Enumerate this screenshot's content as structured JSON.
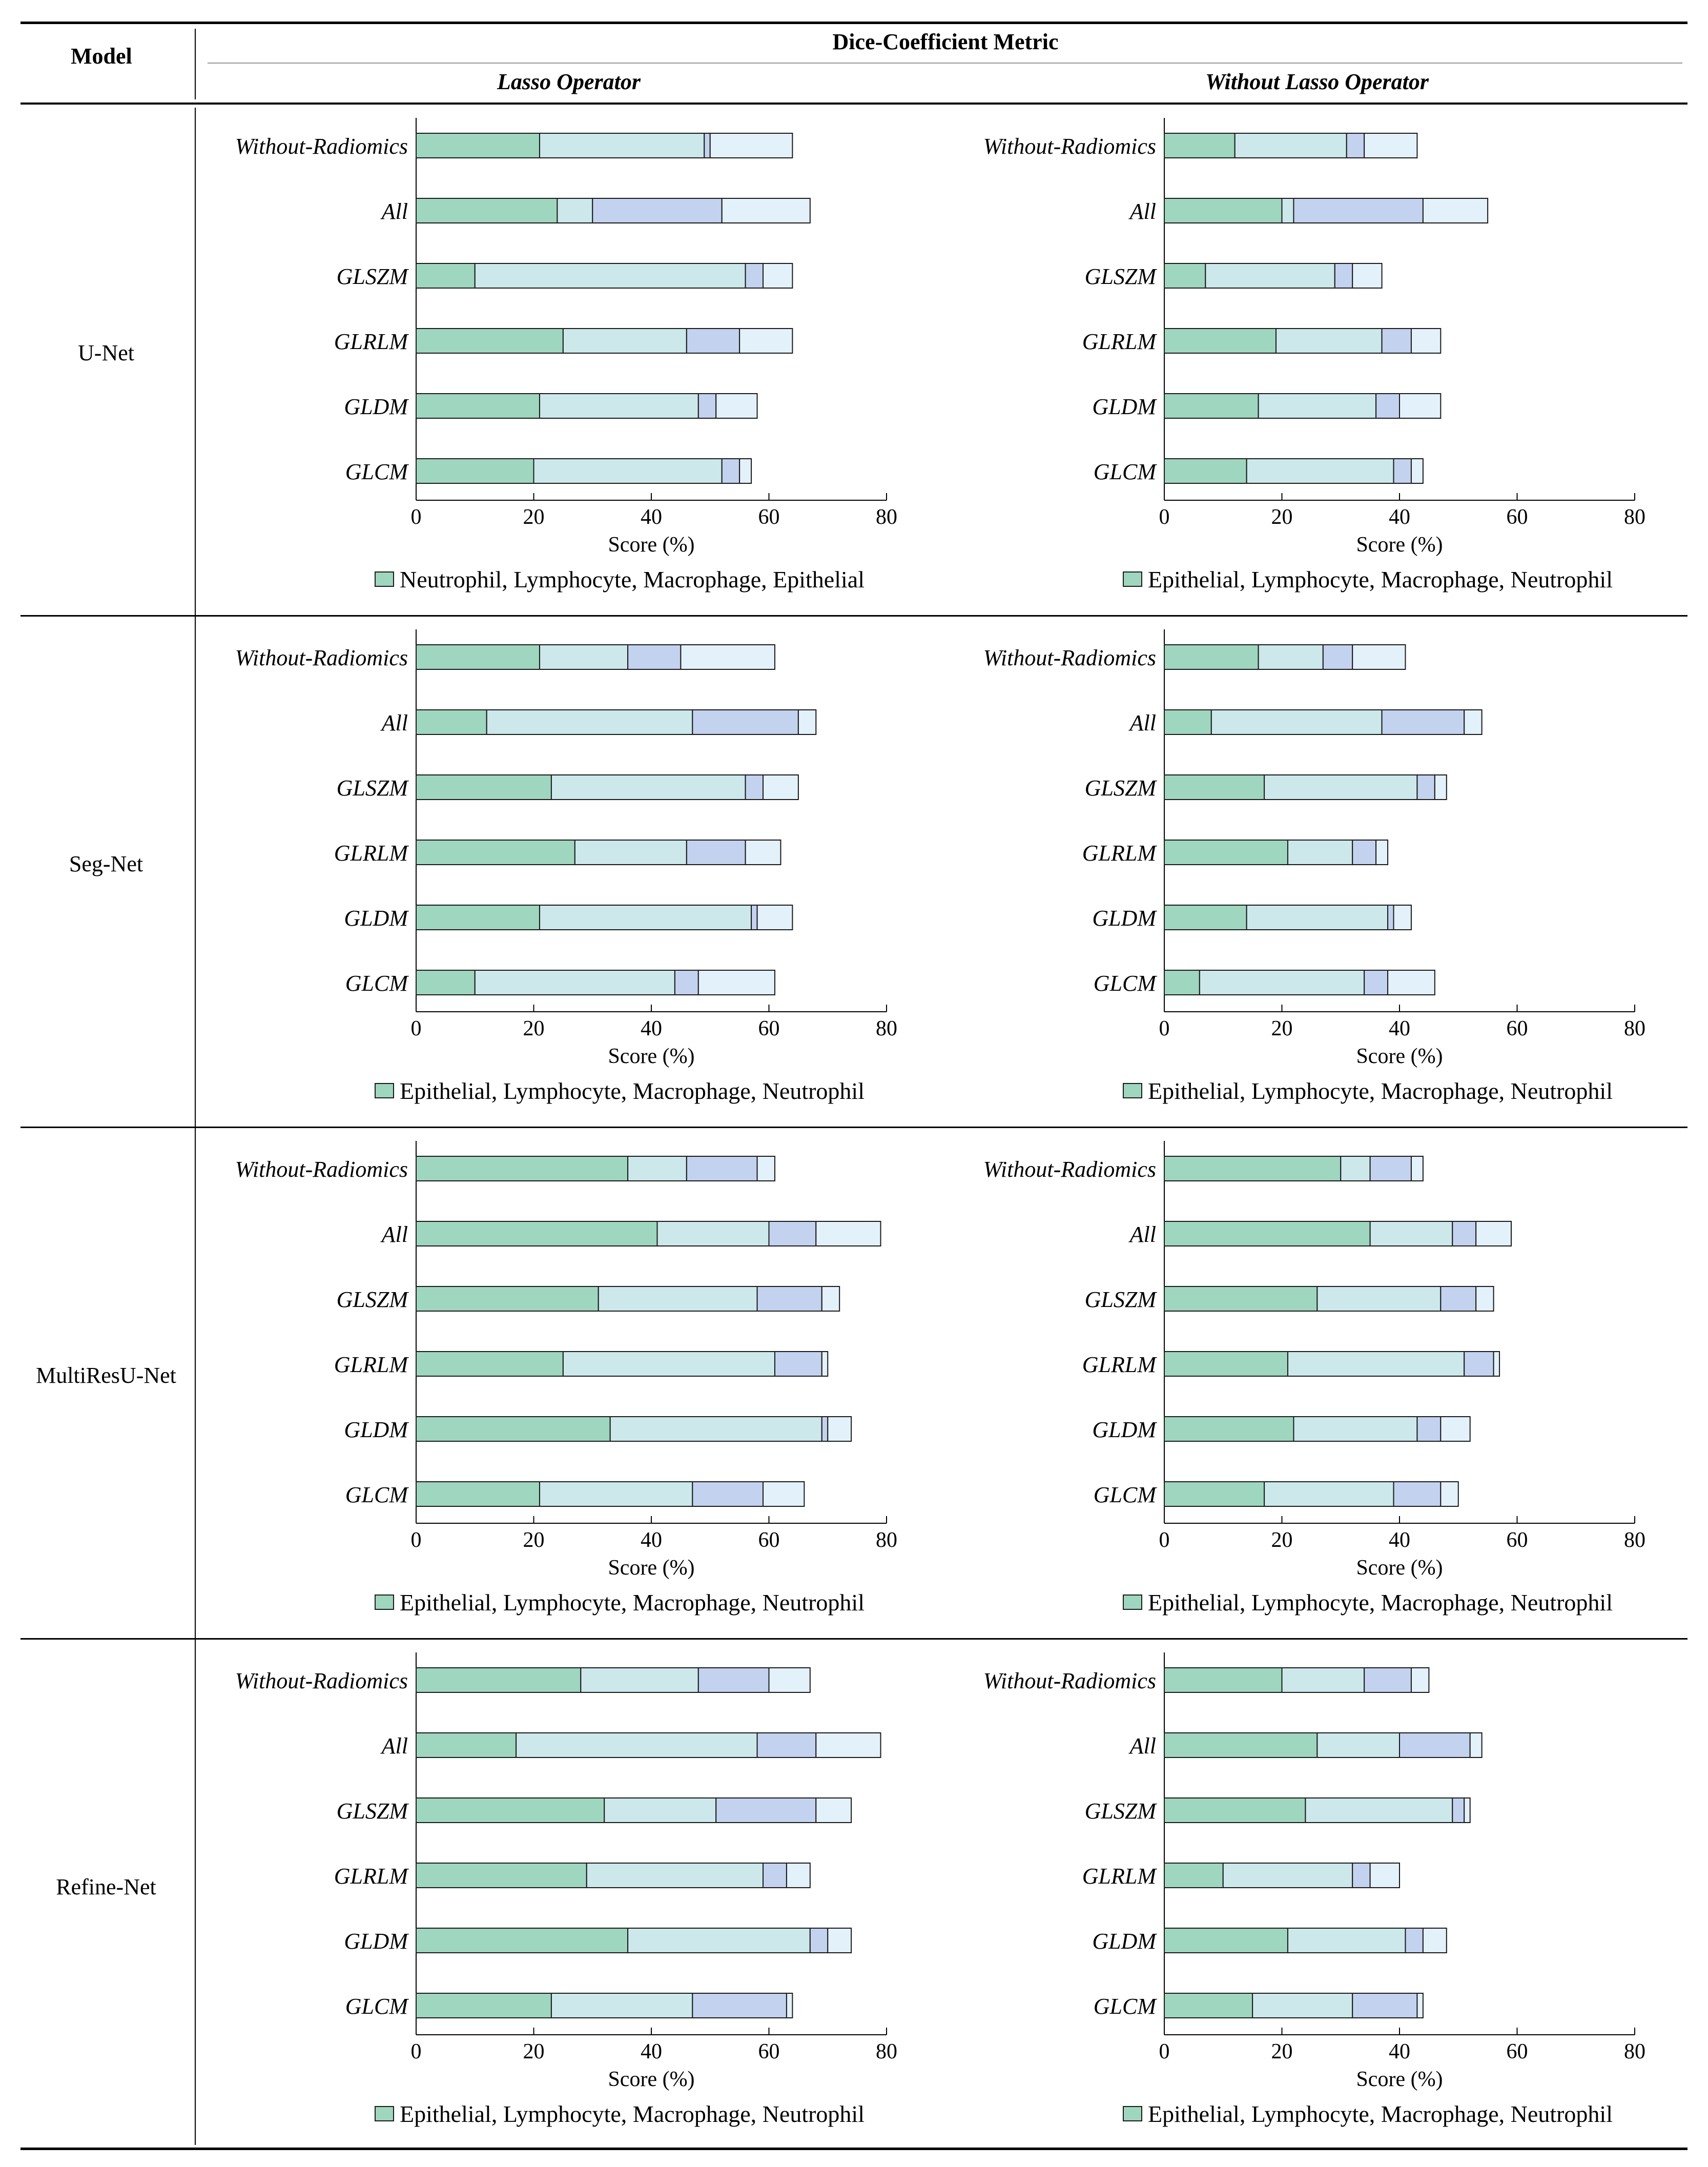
{
  "table": {
    "model_header": "Model",
    "metric_header": "Dice-Coefficient Metric",
    "column_headers": [
      "Lasso Operator",
      "Without Lasso Operator"
    ]
  },
  "colors": {
    "series1": "#9fd6bf",
    "series2": "#cce8ea",
    "series3": "#c3d2ef",
    "series4": "#e3f1fb",
    "outline": "#1a1a1a"
  },
  "chart_data": [
    {
      "type": "bar",
      "stacked": true,
      "orientation": "horizontal",
      "model": "U-Net",
      "condition": "Lasso Operator",
      "categories": [
        "Without-Radiomics",
        "All",
        "GLSZM",
        "GLRLM",
        "GLDM",
        "GLCM"
      ],
      "series": [
        {
          "name": "Neutrophil",
          "values": [
            21,
            24,
            10,
            25,
            21,
            20
          ]
        },
        {
          "name": "Lymphocyte",
          "values": [
            28,
            6,
            46,
            21,
            27,
            32
          ]
        },
        {
          "name": "Macrophage",
          "values": [
            1,
            22,
            3,
            9,
            3,
            3
          ]
        },
        {
          "name": "Epithelial",
          "values": [
            14,
            15,
            5,
            9,
            7,
            2
          ]
        }
      ],
      "xlabel": "Score (%)",
      "xlim": [
        0,
        80
      ],
      "xticks": [
        0,
        20,
        40,
        60,
        80
      ],
      "legend": "Neutrophil, Lymphocyte, Macrophage, Epithelial"
    },
    {
      "type": "bar",
      "stacked": true,
      "orientation": "horizontal",
      "model": "U-Net",
      "condition": "Without Lasso Operator",
      "categories": [
        "Without-Radiomics",
        "All",
        "GLSZM",
        "GLRLM",
        "GLDM",
        "GLCM"
      ],
      "series": [
        {
          "name": "Epithelial",
          "values": [
            12,
            20,
            7,
            19,
            16,
            14
          ]
        },
        {
          "name": "Lymphocyte",
          "values": [
            19,
            2,
            22,
            18,
            20,
            25
          ]
        },
        {
          "name": "Macrophage",
          "values": [
            3,
            22,
            3,
            5,
            4,
            3
          ]
        },
        {
          "name": "Neutrophil",
          "values": [
            9,
            11,
            5,
            5,
            7,
            2
          ]
        }
      ],
      "xlabel": "Score (%)",
      "xlim": [
        0,
        80
      ],
      "xticks": [
        0,
        20,
        40,
        60,
        80
      ],
      "legend": "Epithelial, Lymphocyte, Macrophage, Neutrophil"
    },
    {
      "type": "bar",
      "stacked": true,
      "orientation": "horizontal",
      "model": "Seg-Net",
      "condition": "Lasso Operator",
      "categories": [
        "Without-Radiomics",
        "All",
        "GLSZM",
        "GLRLM",
        "GLDM",
        "GLCM"
      ],
      "series": [
        {
          "name": "Epithelial",
          "values": [
            21,
            12,
            23,
            27,
            21,
            10
          ]
        },
        {
          "name": "Lymphocyte",
          "values": [
            15,
            35,
            33,
            19,
            36,
            34
          ]
        },
        {
          "name": "Macrophage",
          "values": [
            9,
            18,
            3,
            10,
            1,
            4
          ]
        },
        {
          "name": "Neutrophil",
          "values": [
            16,
            3,
            6,
            6,
            6,
            13
          ]
        }
      ],
      "xlabel": "Score (%)",
      "xlim": [
        0,
        80
      ],
      "xticks": [
        0,
        20,
        40,
        60,
        80
      ],
      "legend": "Epithelial, Lymphocyte, Macrophage, Neutrophil"
    },
    {
      "type": "bar",
      "stacked": true,
      "orientation": "horizontal",
      "model": "Seg-Net",
      "condition": "Without Lasso Operator",
      "categories": [
        "Without-Radiomics",
        "All",
        "GLSZM",
        "GLRLM",
        "GLDM",
        "GLCM"
      ],
      "series": [
        {
          "name": "Epithelial",
          "values": [
            16,
            8,
            17,
            21,
            14,
            6
          ]
        },
        {
          "name": "Lymphocyte",
          "values": [
            11,
            29,
            26,
            11,
            24,
            28
          ]
        },
        {
          "name": "Macrophage",
          "values": [
            5,
            14,
            3,
            4,
            1,
            4
          ]
        },
        {
          "name": "Neutrophil",
          "values": [
            9,
            3,
            2,
            2,
            3,
            8
          ]
        }
      ],
      "xlabel": "Score (%)",
      "xlim": [
        0,
        80
      ],
      "xticks": [
        0,
        20,
        40,
        60,
        80
      ],
      "legend": "Epithelial, Lymphocyte, Macrophage, Neutrophil"
    },
    {
      "type": "bar",
      "stacked": true,
      "orientation": "horizontal",
      "model": "MultiResU-Net",
      "condition": "Lasso Operator",
      "categories": [
        "Without-Radiomics",
        "All",
        "GLSZM",
        "GLRLM",
        "GLDM",
        "GLCM"
      ],
      "series": [
        {
          "name": "Epithelial",
          "values": [
            36,
            41,
            31,
            25,
            33,
            21
          ]
        },
        {
          "name": "Lymphocyte",
          "values": [
            10,
            19,
            27,
            36,
            36,
            26
          ]
        },
        {
          "name": "Macrophage",
          "values": [
            12,
            8,
            11,
            8,
            1,
            12
          ]
        },
        {
          "name": "Neutrophil",
          "values": [
            3,
            11,
            3,
            1,
            4,
            7
          ]
        }
      ],
      "xlabel": "Score (%)",
      "xlim": [
        0,
        80
      ],
      "xticks": [
        0,
        20,
        40,
        60,
        80
      ],
      "legend": "Epithelial, Lymphocyte, Macrophage, Neutrophil"
    },
    {
      "type": "bar",
      "stacked": true,
      "orientation": "horizontal",
      "model": "MultiResU-Net",
      "condition": "Without Lasso Operator",
      "categories": [
        "Without-Radiomics",
        "All",
        "GLSZM",
        "GLRLM",
        "GLDM",
        "GLCM"
      ],
      "series": [
        {
          "name": "Epithelial",
          "values": [
            30,
            35,
            26,
            21,
            22,
            17
          ]
        },
        {
          "name": "Lymphocyte",
          "values": [
            5,
            14,
            21,
            30,
            21,
            22
          ]
        },
        {
          "name": "Macrophage",
          "values": [
            7,
            4,
            6,
            5,
            4,
            8
          ]
        },
        {
          "name": "Neutrophil",
          "values": [
            2,
            6,
            3,
            1,
            5,
            3
          ]
        }
      ],
      "xlabel": "Score (%)",
      "xlim": [
        0,
        80
      ],
      "xticks": [
        0,
        20,
        40,
        60,
        80
      ],
      "legend": "Epithelial, Lymphocyte, Macrophage, Neutrophil"
    },
    {
      "type": "bar",
      "stacked": true,
      "orientation": "horizontal",
      "model": "Refine-Net",
      "condition": "Lasso Operator",
      "categories": [
        "Without-Radiomics",
        "All",
        "GLSZM",
        "GLRLM",
        "GLDM",
        "GLCM"
      ],
      "series": [
        {
          "name": "Epithelial",
          "values": [
            28,
            17,
            32,
            29,
            36,
            23
          ]
        },
        {
          "name": "Lymphocyte",
          "values": [
            20,
            41,
            19,
            30,
            31,
            24
          ]
        },
        {
          "name": "Macrophage",
          "values": [
            12,
            10,
            17,
            4,
            3,
            16
          ]
        },
        {
          "name": "Neutrophil",
          "values": [
            7,
            11,
            6,
            4,
            4,
            1
          ]
        }
      ],
      "xlabel": "Score (%)",
      "xlim": [
        0,
        80
      ],
      "xticks": [
        0,
        20,
        40,
        60,
        80
      ],
      "legend": "Epithelial, Lymphocyte, Macrophage, Neutrophil"
    },
    {
      "type": "bar",
      "stacked": true,
      "orientation": "horizontal",
      "model": "Refine-Net",
      "condition": "Without Lasso Operator",
      "categories": [
        "Without-Radiomics",
        "All",
        "GLSZM",
        "GLRLM",
        "GLDM",
        "GLCM"
      ],
      "series": [
        {
          "name": "Epithelial",
          "values": [
            20,
            26,
            24,
            10,
            21,
            15
          ]
        },
        {
          "name": "Lymphocyte",
          "values": [
            14,
            14,
            25,
            22,
            20,
            17
          ]
        },
        {
          "name": "Macrophage",
          "values": [
            8,
            12,
            2,
            3,
            3,
            11
          ]
        },
        {
          "name": "Neutrophil",
          "values": [
            3,
            2,
            1,
            5,
            4,
            1
          ]
        }
      ],
      "xlabel": "Score (%)",
      "xlim": [
        0,
        80
      ],
      "xticks": [
        0,
        20,
        40,
        60,
        80
      ],
      "legend": "Epithelial, Lymphocyte, Macrophage, Neutrophil"
    }
  ]
}
